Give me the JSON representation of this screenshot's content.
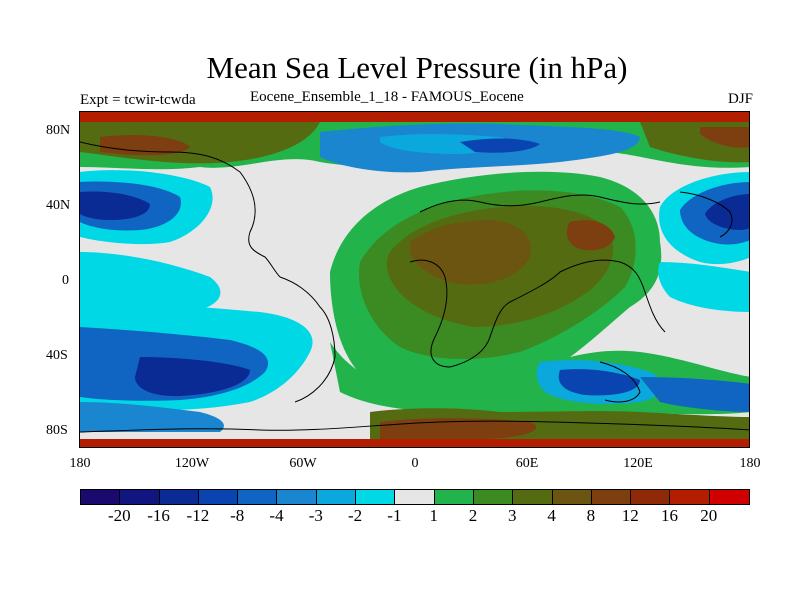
{
  "title": "Mean Sea Level Pressure (in hPa)",
  "subtitle_left": "Expt = tcwir-tcwda",
  "subtitle_center": "Eocene_Ensemble_1_18 - FAMOUS_Eocene",
  "subtitle_right": "DJF",
  "lat_labels": [
    "80N",
    "40N",
    "0",
    "40S",
    "80S"
  ],
  "lon_labels": [
    "180",
    "120W",
    "60W",
    "0",
    "60E",
    "120E",
    "180"
  ],
  "colorbar": {
    "colors": [
      "#1a0a6e",
      "#10157f",
      "#0a2a94",
      "#0a44b0",
      "#1065c2",
      "#1a86d0",
      "#0aa8dc",
      "#00d8e6",
      "#e6e6e6",
      "#22b34a",
      "#3c8a22",
      "#556b12",
      "#6b5510",
      "#7d3e10",
      "#8f2a08",
      "#b31e00",
      "#d10000"
    ],
    "labels": [
      "-20",
      "-16",
      "-12",
      "-8",
      "-4",
      "-3",
      "-2",
      "-1",
      "1",
      "2",
      "3",
      "4",
      "8",
      "12",
      "16",
      "20"
    ]
  }
}
